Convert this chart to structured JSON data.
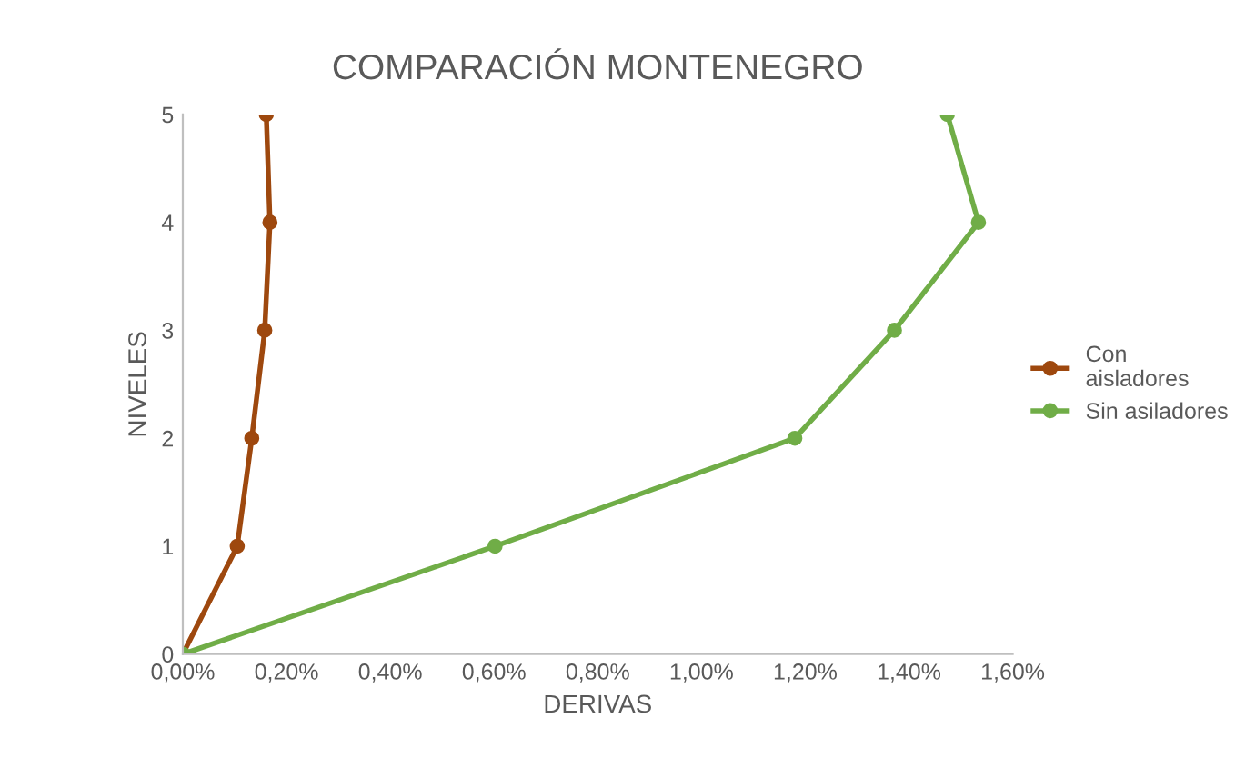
{
  "chart_data": {
    "type": "line",
    "title": "COMPARACIÓN MONTENEGRO",
    "xlabel": "DERIVAS",
    "ylabel": "NIVELES",
    "series": [
      {
        "name": "Con\naisladores",
        "color": "#9e480e",
        "x": [
          0.0,
          0.105,
          0.133,
          0.158,
          0.168,
          0.161
        ],
        "values": [
          0,
          1,
          2,
          3,
          4,
          5
        ]
      },
      {
        "name": "Sin asiladores",
        "color": "#70ad47",
        "x": [
          0.0,
          0.602,
          1.18,
          1.372,
          1.534,
          1.474
        ],
        "values": [
          0,
          1,
          2,
          3,
          4,
          5
        ]
      }
    ],
    "xlim": [
      0,
      1.6
    ],
    "xticks": [
      {
        "value": 0,
        "label": "0,00%"
      },
      {
        "value": 0.2,
        "label": "0,20%"
      },
      {
        "value": 0.4,
        "label": "0,40%"
      },
      {
        "value": 0.6,
        "label": "0,60%"
      },
      {
        "value": 0.8,
        "label": "0,80%"
      },
      {
        "value": 1.0,
        "label": "1,00%"
      },
      {
        "value": 1.2,
        "label": "1,20%"
      },
      {
        "value": 1.4,
        "label": "1,40%"
      },
      {
        "value": 1.6,
        "label": "1,60%"
      }
    ],
    "ylim": [
      0,
      5
    ],
    "yticks": [
      0,
      1,
      2,
      3,
      4,
      5
    ],
    "grid": false,
    "legend": "right",
    "marker": "circle",
    "line_style": "solid"
  }
}
